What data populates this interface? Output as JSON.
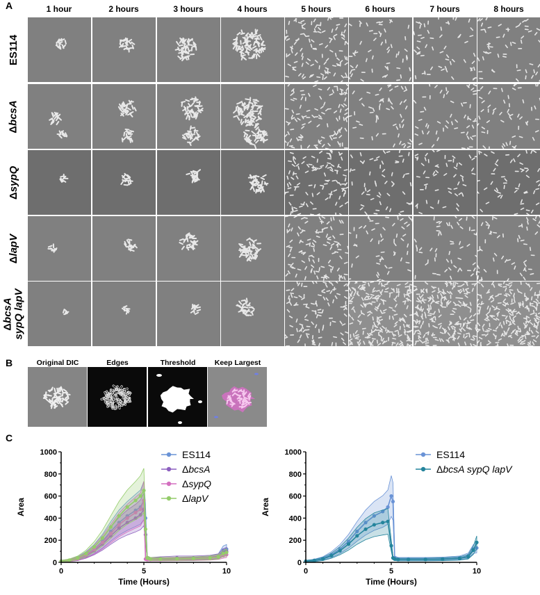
{
  "figure": {
    "panel_labels": {
      "a": "A",
      "b": "B",
      "c": "C"
    },
    "panel_a": {
      "time_headers": [
        "1 hour",
        "2 hours",
        "3 hours",
        "4 hours",
        "5 hours",
        "6 hours",
        "7 hours",
        "8 hours"
      ],
      "rows": [
        {
          "prefix": "",
          "italic": "",
          "text": "ES114"
        },
        {
          "prefix": "Δ",
          "italic": "bcsA",
          "text": ""
        },
        {
          "prefix": "Δ",
          "italic": "sypQ",
          "text": ""
        },
        {
          "prefix": "Δ",
          "italic": "lapV",
          "text": ""
        },
        {
          "prefix": "Δ",
          "italic": "bcsA sypQ lapV",
          "text": ""
        }
      ]
    },
    "panel_b": {
      "headers": [
        "Original DIC",
        "Edges",
        "Threshold",
        "Keep Largest"
      ]
    }
  },
  "chart_data": [
    {
      "type": "line",
      "xlabel": "Time (Hours)",
      "ylabel": "Area",
      "xlim": [
        0,
        10
      ],
      "ylim": [
        0,
        1000
      ],
      "xticks": [
        "0",
        "5",
        "10"
      ],
      "yticks": [
        "0",
        "200",
        "400",
        "600",
        "800",
        "1000"
      ],
      "legend_position": "top-right",
      "series": [
        {
          "name": "ES114",
          "legend": {
            "prefix": "",
            "italic": "ES114"
          },
          "color": "#6a93d6",
          "x": [
            0,
            0.5,
            1,
            1.5,
            2,
            2.5,
            3,
            3.5,
            4,
            4.5,
            4.8,
            5.0,
            5.1,
            5.2,
            5.4,
            6,
            7,
            8,
            9,
            9.5,
            9.8,
            10
          ],
          "y": [
            10,
            18,
            35,
            70,
            120,
            190,
            280,
            360,
            420,
            470,
            500,
            560,
            400,
            40,
            30,
            30,
            30,
            32,
            40,
            55,
            110,
            120
          ]
        },
        {
          "name": "ΔbcsA",
          "legend": {
            "prefix": "Δ",
            "italic": "bcsA"
          },
          "color": "#8c5fbf",
          "x": [
            0,
            0.5,
            1,
            1.5,
            2,
            2.5,
            3,
            3.5,
            4,
            4.5,
            4.8,
            5.0,
            5.1,
            5.2,
            5.4,
            6,
            7,
            8,
            9,
            9.5,
            9.8,
            10
          ],
          "y": [
            10,
            16,
            30,
            60,
            105,
            165,
            240,
            310,
            360,
            400,
            430,
            480,
            250,
            40,
            30,
            35,
            40,
            40,
            45,
            55,
            90,
            100
          ]
        },
        {
          "name": "ΔsypQ",
          "legend": {
            "prefix": "Δ",
            "italic": "sypQ"
          },
          "color": "#d36fbf",
          "x": [
            0,
            0.5,
            1,
            1.5,
            2,
            2.5,
            3,
            3.5,
            4,
            4.5,
            4.8,
            5.0,
            5.1,
            5.2,
            5.4,
            6,
            7,
            8,
            9,
            9.5,
            9.8,
            10
          ],
          "y": [
            10,
            17,
            33,
            65,
            115,
            180,
            260,
            340,
            400,
            450,
            480,
            560,
            30,
            25,
            25,
            25,
            28,
            30,
            35,
            45,
            60,
            70
          ]
        },
        {
          "name": "ΔlapV",
          "legend": {
            "prefix": "Δ",
            "italic": "lapV"
          },
          "color": "#94cc6a",
          "x": [
            0,
            0.5,
            1,
            1.5,
            2,
            2.5,
            3,
            3.5,
            4,
            4.5,
            4.8,
            5.0,
            5.1,
            5.2,
            5.4,
            6,
            7,
            8,
            9,
            9.5,
            9.8,
            10
          ],
          "y": [
            10,
            20,
            40,
            80,
            140,
            220,
            320,
            420,
            500,
            560,
            600,
            650,
            300,
            40,
            30,
            30,
            32,
            35,
            40,
            50,
            80,
            90
          ]
        }
      ]
    },
    {
      "type": "line",
      "xlabel": "Time (Hours)",
      "ylabel": "Area",
      "xlim": [
        0,
        10
      ],
      "ylim": [
        0,
        1000
      ],
      "xticks": [
        "0",
        "5",
        "10"
      ],
      "yticks": [
        "0",
        "200",
        "400",
        "600",
        "800",
        "1000"
      ],
      "legend_position": "top-right",
      "series": [
        {
          "name": "ES114",
          "legend": {
            "prefix": "",
            "italic": "ES114"
          },
          "color": "#6a93d6",
          "x": [
            0,
            0.5,
            1,
            1.5,
            2,
            2.5,
            3,
            3.5,
            4,
            4.5,
            4.8,
            5.0,
            5.1,
            5.2,
            5.4,
            6,
            7,
            8,
            9,
            9.5,
            9.8,
            10
          ],
          "y": [
            10,
            18,
            35,
            70,
            120,
            190,
            280,
            360,
            420,
            460,
            500,
            600,
            550,
            40,
            30,
            30,
            30,
            32,
            40,
            60,
            120,
            130
          ]
        },
        {
          "name": "ΔbcsA sypQ lapV",
          "legend": {
            "prefix": "Δ",
            "italic": "bcsA sypQ lapV"
          },
          "color": "#24849c",
          "x": [
            0,
            0.5,
            1,
            1.5,
            2,
            2.5,
            3,
            3.5,
            4,
            4.5,
            4.8,
            5.0,
            5.1,
            5.2,
            5.4,
            6,
            7,
            8,
            9,
            9.5,
            9.8,
            10
          ],
          "y": [
            10,
            16,
            30,
            60,
            105,
            165,
            240,
            300,
            340,
            360,
            370,
            150,
            40,
            30,
            25,
            25,
            25,
            28,
            35,
            50,
            110,
            180
          ]
        }
      ]
    }
  ]
}
